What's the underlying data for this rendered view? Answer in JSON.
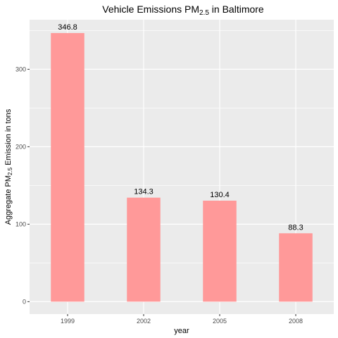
{
  "chart_data": {
    "type": "bar",
    "title_prefix": "Vehicle Emissions PM",
    "title_sub": "2.5",
    "title_suffix": " in Baltimore",
    "xlabel": "year",
    "ylabel_prefix": "Aggregate PM",
    "ylabel_sub": "2.5",
    "ylabel_suffix": " Emission in tons",
    "categories": [
      "1999",
      "2002",
      "2005",
      "2008"
    ],
    "values": [
      346.8,
      134.3,
      130.4,
      88.3
    ],
    "data_labels": [
      "346.8",
      "134.3",
      "130.4",
      "88.3"
    ],
    "ylim": [
      -16,
      364
    ],
    "yticks": [
      0,
      100,
      200,
      300
    ],
    "ytick_labels": [
      "0",
      "100",
      "200",
      "300"
    ],
    "grid": true,
    "bar_color": "#ff9999",
    "panel_color": "#ebebeb",
    "grid_color": "#ffffff"
  }
}
